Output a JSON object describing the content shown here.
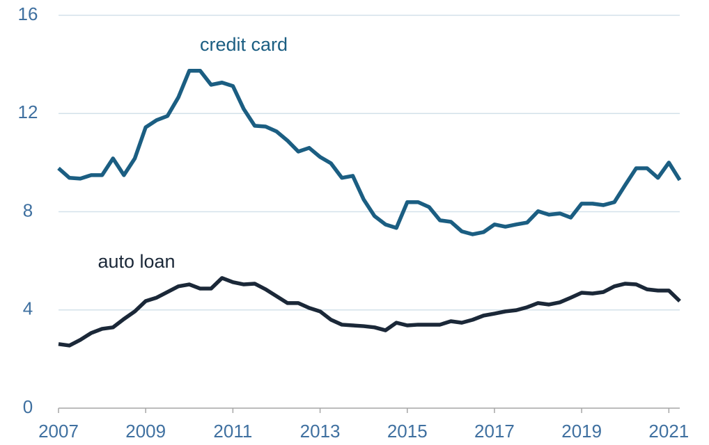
{
  "chart_data": {
    "type": "line",
    "x": [
      2007,
      2007.25,
      2007.5,
      2007.75,
      2008,
      2008.25,
      2008.5,
      2008.75,
      2009,
      2009.25,
      2009.5,
      2009.75,
      2010,
      2010.25,
      2010.5,
      2010.75,
      2011,
      2011.25,
      2011.5,
      2011.75,
      2012,
      2012.25,
      2012.5,
      2012.75,
      2013,
      2013.25,
      2013.5,
      2013.75,
      2014,
      2014.25,
      2014.5,
      2014.75,
      2015,
      2015.25,
      2015.5,
      2015.75,
      2016,
      2016.25,
      2016.5,
      2016.75,
      2017,
      2017.25,
      2017.5,
      2017.75,
      2018,
      2018.25,
      2018.5,
      2018.75,
      2019,
      2019.25,
      2019.5,
      2019.75,
      2020,
      2020.25,
      2020.5,
      2020.75,
      2021,
      2021.25
    ],
    "series": [
      {
        "name": "credit card",
        "color": "#1b5e82",
        "values": [
          9.77,
          9.38,
          9.35,
          9.49,
          9.49,
          10.17,
          9.49,
          10.17,
          11.44,
          11.73,
          11.9,
          12.66,
          13.74,
          13.74,
          13.17,
          13.26,
          13.12,
          12.18,
          11.5,
          11.47,
          11.27,
          10.9,
          10.45,
          10.6,
          10.23,
          9.97,
          9.38,
          9.46,
          8.5,
          7.82,
          7.48,
          7.34,
          8.39,
          8.39,
          8.19,
          7.65,
          7.59,
          7.2,
          7.08,
          7.17,
          7.48,
          7.39,
          7.48,
          7.56,
          8.02,
          7.88,
          7.93,
          7.76,
          8.33,
          8.33,
          8.27,
          8.39,
          9.09,
          9.77,
          9.77,
          9.38,
          10.0,
          9.29
        ]
      },
      {
        "name": "auto loan",
        "color": "#1b2838",
        "values": [
          2.61,
          2.55,
          2.78,
          3.06,
          3.23,
          3.29,
          3.63,
          3.94,
          4.36,
          4.5,
          4.73,
          4.96,
          5.04,
          4.87,
          4.87,
          5.3,
          5.13,
          5.04,
          5.07,
          4.84,
          4.56,
          4.28,
          4.28,
          4.08,
          3.94,
          3.6,
          3.4,
          3.37,
          3.34,
          3.29,
          3.17,
          3.48,
          3.37,
          3.4,
          3.4,
          3.4,
          3.54,
          3.48,
          3.6,
          3.77,
          3.85,
          3.94,
          3.99,
          4.11,
          4.28,
          4.22,
          4.31,
          4.5,
          4.7,
          4.67,
          4.73,
          4.96,
          5.07,
          5.04,
          4.84,
          4.79,
          4.79,
          4.36
        ]
      }
    ],
    "xlim": [
      2007,
      2021.25
    ],
    "xticks": [
      2007,
      2009,
      2011,
      2013,
      2015,
      2017,
      2019,
      2021
    ],
    "ylim": [
      0,
      16
    ],
    "yticks": [
      0,
      4,
      8,
      12,
      16
    ],
    "grid": true
  }
}
